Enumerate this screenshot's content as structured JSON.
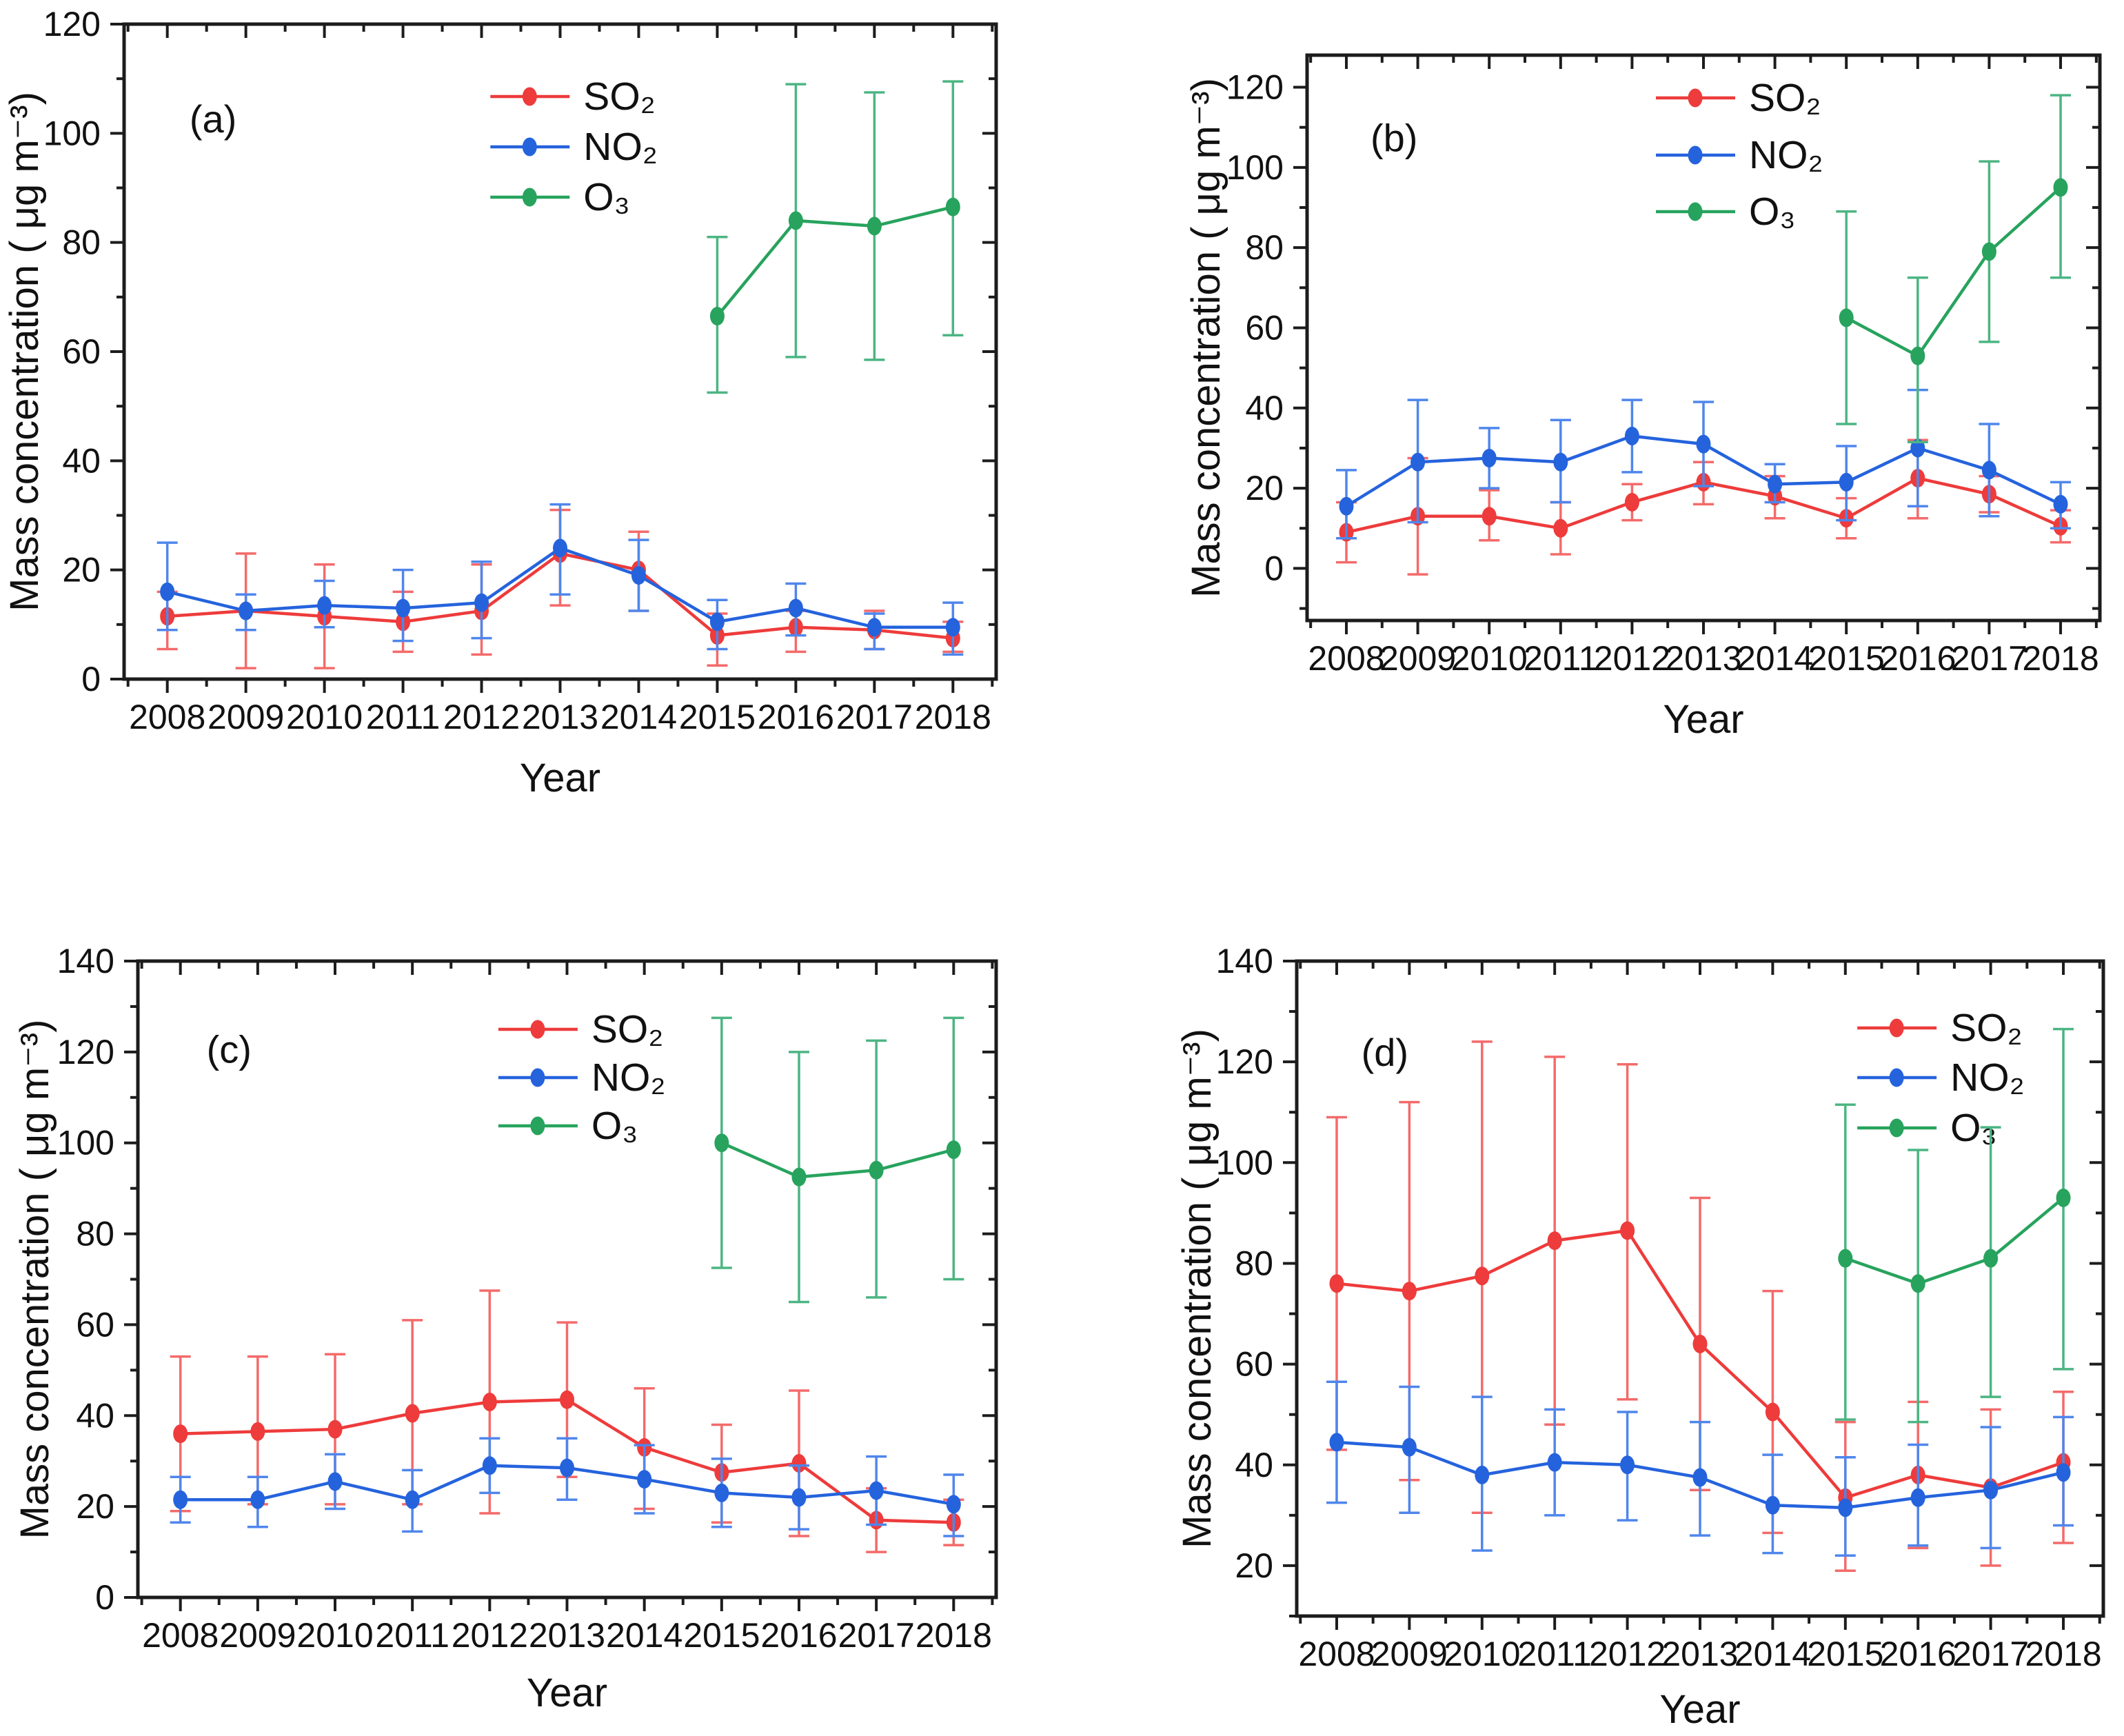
{
  "figure": {
    "x_axis_label": "Year",
    "y_axis_label": "Mass concentration ( μg m⁻³)",
    "colors": {
      "axis": "#1c1c1c",
      "so2": "#ee3b3b",
      "no2": "#2563dd",
      "o3": "#27a35d",
      "so2_err": "#f46a6a",
      "no2_err": "#4f86ec",
      "o3_err": "#4cb583"
    }
  },
  "chart_data": [
    {
      "type": "line",
      "panel_label": "(a)",
      "xlabel": "Year",
      "ylabel": "Mass concentration ( μg m⁻³)",
      "x": [
        2008,
        2009,
        2010,
        2011,
        2012,
        2013,
        2014,
        2015,
        2016,
        2017,
        2018
      ],
      "xlim": [
        2007.45,
        2018.55
      ],
      "ylim": [
        0,
        120
      ],
      "yticks": [
        0,
        20,
        40,
        60,
        80,
        100,
        120
      ],
      "ytick_minor_step": 10,
      "grid": false,
      "legend_position": "top-center",
      "series": [
        {
          "name": "SO₂",
          "key": "so2",
          "color": "#ee3b3b",
          "err_color": "#f46a6a",
          "values": [
            11.5,
            12.5,
            11.5,
            10.5,
            12.5,
            23,
            20,
            8,
            9.5,
            9,
            7.5
          ],
          "err_low": [
            5.5,
            2,
            2,
            5,
            4.5,
            13.5,
            12.5,
            2.5,
            5,
            5.5,
            5
          ],
          "err_high": [
            16,
            23,
            21,
            16,
            21,
            31,
            27,
            12,
            12.5,
            12.5,
            10.5
          ]
        },
        {
          "name": "NO₂",
          "key": "no2",
          "color": "#2563dd",
          "err_color": "#4f86ec",
          "values": [
            16,
            12.5,
            13.5,
            13,
            14,
            24,
            19,
            10.5,
            13,
            9.5,
            9.5
          ],
          "err_low": [
            9,
            9,
            9.5,
            7,
            7.5,
            15.5,
            12.5,
            5.5,
            8,
            5.5,
            4.5
          ],
          "err_high": [
            25,
            15.5,
            18,
            20,
            21.5,
            32,
            25.5,
            14.5,
            17.5,
            12,
            14
          ]
        },
        {
          "name": "O₃",
          "key": "o3",
          "color": "#27a35d",
          "err_color": "#4cb583",
          "values": [
            null,
            null,
            null,
            null,
            null,
            null,
            null,
            66.5,
            84,
            83,
            86.5
          ],
          "err_low": [
            null,
            null,
            null,
            null,
            null,
            null,
            null,
            52.5,
            59,
            58.5,
            63
          ],
          "err_high": [
            null,
            null,
            null,
            null,
            null,
            null,
            null,
            81,
            109,
            107.5,
            109.5
          ]
        }
      ]
    },
    {
      "type": "line",
      "panel_label": "(b)",
      "xlabel": "Year",
      "ylabel": "Mass concentration ( μg m⁻³)",
      "x": [
        2008,
        2009,
        2010,
        2011,
        2012,
        2013,
        2014,
        2015,
        2016,
        2017,
        2018
      ],
      "xlim": [
        2007.45,
        2018.55
      ],
      "ylim": [
        -13,
        128
      ],
      "yticks": [
        0,
        20,
        40,
        60,
        80,
        100,
        120
      ],
      "ytick_minor_step": 10,
      "grid": false,
      "legend_position": "top-center",
      "series": [
        {
          "name": "SO₂",
          "key": "so2",
          "color": "#ee3b3b",
          "err_color": "#f46a6a",
          "values": [
            9,
            13,
            13,
            10,
            16.5,
            21.5,
            18,
            12.5,
            22.5,
            18.5,
            10.5
          ],
          "err_low": [
            1.5,
            -1.5,
            7,
            3.5,
            12,
            16,
            12.5,
            7.5,
            12.5,
            14,
            6.5
          ],
          "err_high": [
            16.5,
            27.5,
            19.5,
            16.5,
            21,
            26.5,
            23,
            17.5,
            32,
            23,
            14.5
          ]
        },
        {
          "name": "NO₂",
          "key": "no2",
          "color": "#2563dd",
          "err_color": "#4f86ec",
          "values": [
            15.5,
            26.5,
            27.5,
            26.5,
            33,
            31,
            21,
            21.5,
            30,
            24.5,
            16
          ],
          "err_low": [
            7.5,
            11.5,
            20,
            16.5,
            24,
            20.5,
            16.5,
            12,
            15.5,
            13,
            10
          ],
          "err_high": [
            24.5,
            42,
            35,
            37,
            42,
            41.5,
            26,
            30.5,
            44.5,
            36,
            21.5
          ]
        },
        {
          "name": "O₃",
          "key": "o3",
          "color": "#27a35d",
          "err_color": "#4cb583",
          "values": [
            null,
            null,
            null,
            null,
            null,
            null,
            null,
            62.5,
            53,
            79,
            95
          ],
          "err_low": [
            null,
            null,
            null,
            null,
            null,
            null,
            null,
            36,
            31.5,
            56.5,
            72.5
          ],
          "err_high": [
            null,
            null,
            null,
            null,
            null,
            null,
            null,
            89,
            72.5,
            101.5,
            118
          ]
        }
      ]
    },
    {
      "type": "line",
      "panel_label": "(c)",
      "xlabel": "Year",
      "ylabel": "Mass concentration ( μg m⁻³)",
      "x": [
        2008,
        2009,
        2010,
        2011,
        2012,
        2013,
        2014,
        2015,
        2016,
        2017,
        2018
      ],
      "xlim": [
        2007.45,
        2018.55
      ],
      "ylim": [
        0,
        140
      ],
      "yticks": [
        0,
        20,
        40,
        60,
        80,
        100,
        120,
        140
      ],
      "ytick_minor_step": 10,
      "grid": false,
      "legend_position": "top-center",
      "series": [
        {
          "name": "SO₂",
          "key": "so2",
          "color": "#ee3b3b",
          "err_color": "#f46a6a",
          "values": [
            36,
            36.5,
            37,
            40.5,
            43,
            43.5,
            33,
            27.5,
            29.5,
            17,
            16.5
          ],
          "err_low": [
            19,
            20.5,
            20.5,
            20.5,
            18.5,
            26.5,
            19.5,
            16.5,
            13.5,
            10,
            11.5
          ],
          "err_high": [
            53,
            53,
            53.5,
            61,
            67.5,
            60.5,
            46,
            38,
            45.5,
            24,
            21.5
          ]
        },
        {
          "name": "NO₂",
          "key": "no2",
          "color": "#2563dd",
          "err_color": "#4f86ec",
          "values": [
            21.5,
            21.5,
            25.5,
            21.5,
            29,
            28.5,
            26,
            23,
            22,
            23.5,
            20.5
          ],
          "err_low": [
            16.5,
            15.5,
            19.5,
            14.5,
            23,
            21.5,
            18.5,
            15.5,
            15,
            16,
            13.5
          ],
          "err_high": [
            26.5,
            26.5,
            31.5,
            28,
            35,
            35,
            33.5,
            30.5,
            29,
            31,
            27
          ]
        },
        {
          "name": "O₃",
          "key": "o3",
          "color": "#27a35d",
          "err_color": "#4cb583",
          "values": [
            null,
            null,
            null,
            null,
            null,
            null,
            null,
            100,
            92.5,
            94,
            98.5
          ],
          "err_low": [
            null,
            null,
            null,
            null,
            null,
            null,
            null,
            72.5,
            65,
            66,
            70
          ],
          "err_high": [
            null,
            null,
            null,
            null,
            null,
            null,
            null,
            127.5,
            120,
            122.5,
            127.5
          ]
        }
      ]
    },
    {
      "type": "line",
      "panel_label": "(d)",
      "xlabel": "Year",
      "ylabel": "Mass concentration ( μg m⁻³)",
      "x": [
        2008,
        2009,
        2010,
        2011,
        2012,
        2013,
        2014,
        2015,
        2016,
        2017,
        2018
      ],
      "xlim": [
        2007.45,
        2018.55
      ],
      "ylim": [
        10,
        140
      ],
      "yticks": [
        20,
        40,
        60,
        80,
        100,
        120,
        140
      ],
      "ytick_minor_step": 10,
      "grid": false,
      "legend_position": "top-right",
      "series": [
        {
          "name": "SO₂",
          "key": "so2",
          "color": "#ee3b3b",
          "err_color": "#f46a6a",
          "values": [
            76,
            74.5,
            77.5,
            84.5,
            86.5,
            64,
            50.5,
            33.5,
            38,
            35.5,
            40.5
          ],
          "err_low": [
            43,
            37,
            30.5,
            48,
            53,
            35,
            26.5,
            19,
            23.5,
            20,
            24.5
          ],
          "err_high": [
            109,
            112,
            124,
            121,
            119.5,
            93,
            74.5,
            48.5,
            52.5,
            51,
            54.5
          ]
        },
        {
          "name": "NO₂",
          "key": "no2",
          "color": "#2563dd",
          "err_color": "#4f86ec",
          "values": [
            44.5,
            43.5,
            38,
            40.5,
            40,
            37.5,
            32,
            31.5,
            33.5,
            35,
            38.5
          ],
          "err_low": [
            32.5,
            30.5,
            23,
            30,
            29,
            26,
            22.5,
            22,
            24,
            23.5,
            28
          ],
          "err_high": [
            56.5,
            55.5,
            53.5,
            51,
            50.5,
            48.5,
            42,
            41.5,
            44,
            47.5,
            49.5
          ]
        },
        {
          "name": "O₃",
          "key": "o3",
          "color": "#27a35d",
          "err_color": "#4cb583",
          "values": [
            null,
            null,
            null,
            null,
            null,
            null,
            null,
            81,
            76,
            81,
            93
          ],
          "err_low": [
            null,
            null,
            null,
            null,
            null,
            null,
            null,
            49,
            48.5,
            53.5,
            59
          ],
          "err_high": [
            null,
            null,
            null,
            null,
            null,
            null,
            null,
            111.5,
            102.5,
            107,
            126.5
          ]
        }
      ]
    }
  ]
}
